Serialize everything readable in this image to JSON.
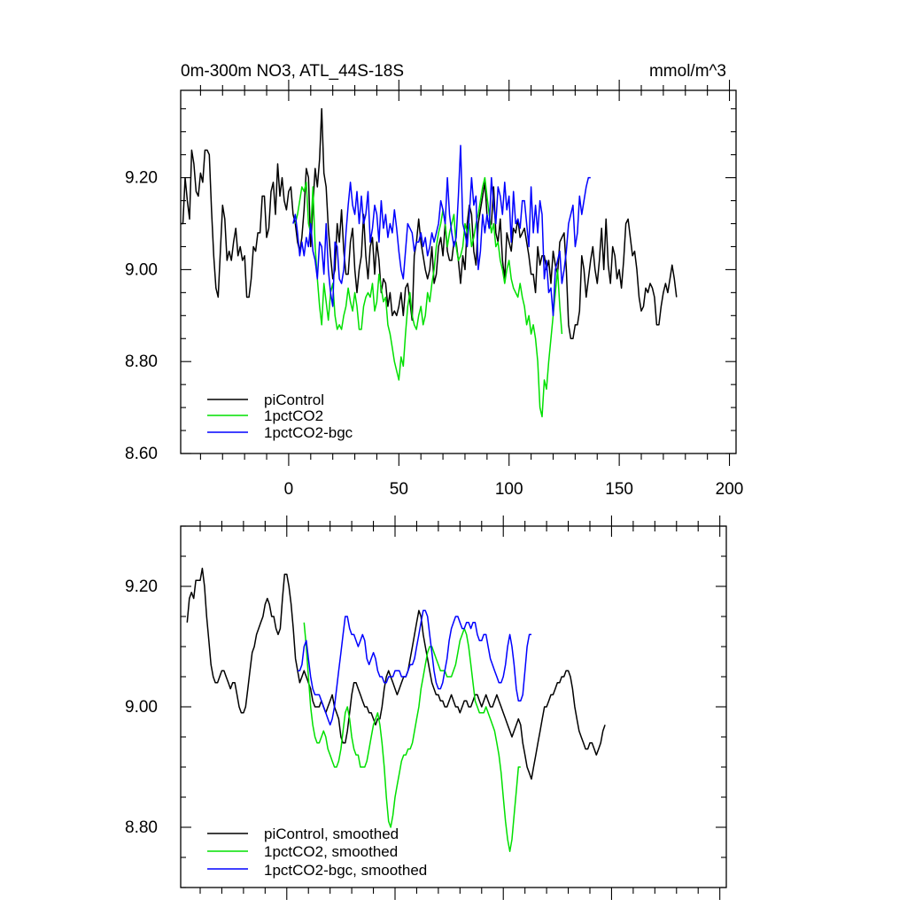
{
  "panels": [
    {
      "title_left": "0m-300m NO3, ATL_44S-18S",
      "title_right": "mmol/m^3",
      "legend": [
        {
          "label": "piControl",
          "color": "#000000"
        },
        {
          "label": "1pctCO2",
          "color": "#00e000"
        },
        {
          "label": "1pctCO2-bgc",
          "color": "#0000ff"
        }
      ]
    },
    {
      "legend": [
        {
          "label": "piControl, smoothed",
          "color": "#000000"
        },
        {
          "label": "1pctCO2, smoothed",
          "color": "#00e000"
        },
        {
          "label": "1pctCO2-bgc, smoothed",
          "color": "#0000ff"
        }
      ]
    }
  ],
  "chart_data": [
    {
      "type": "line",
      "title": "0m-300m NO3, ATL_44S-18S",
      "units": "mmol/m^3",
      "xlim": [
        -49,
        203
      ],
      "ylim": [
        8.6,
        9.39
      ],
      "x_ticks": [
        "0",
        "50",
        "100",
        "150",
        "200"
      ],
      "y_ticks": [
        "8.60",
        "8.80",
        "9.00",
        "9.20"
      ],
      "series": [
        {
          "name": "piControl",
          "color": "#000000",
          "x_start": -49,
          "x_step": 1,
          "values": [
            9.1,
            9.1,
            9.2,
            9.15,
            9.11,
            9.26,
            9.23,
            9.17,
            9.16,
            9.21,
            9.19,
            9.26,
            9.26,
            9.25,
            9.13,
            9.03,
            8.96,
            8.94,
            9.04,
            9.14,
            9.11,
            9.02,
            9.04,
            9.02,
            9.06,
            9.09,
            9.03,
            9.05,
            9.02,
            9.03,
            8.94,
            8.94,
            8.98,
            9.05,
            9.04,
            9.08,
            9.08,
            9.16,
            9.16,
            9.07,
            9.09,
            9.17,
            9.19,
            9.12,
            9.23,
            9.16,
            9.2,
            9.15,
            9.13,
            9.17,
            9.18,
            9.12,
            9.1,
            9.06,
            9.04,
            9.07,
            9.13,
            9.22,
            9.2,
            9.05,
            9.14,
            9.22,
            9.18,
            9.24,
            9.35,
            9.21,
            9.18,
            9.09,
            9.03,
            8.98,
            9.0,
            9.1,
            9.06,
            9.13,
            9.04,
            8.99,
            8.99,
            9.06,
            9.09,
            9.0,
            8.95,
            9.0,
            9.03,
            9.12,
            9.03,
            8.98,
            9.05,
            9.07,
            8.99,
            9.06,
            9.02,
            8.95,
            8.98,
            8.97,
            8.92,
            8.95,
            8.9,
            8.91,
            8.9,
            8.92,
            8.95,
            8.9,
            8.96,
            8.97,
            8.93,
            8.89,
            9.03,
            9.06,
            9.11,
            9.06,
            9.03,
            9.0,
            8.98,
            9.0,
            9.05,
            8.97,
            8.99,
            9.05,
            9.07,
            9.03,
            9.1,
            9.04,
            9.02,
            9.02,
            9.06,
            9.06,
            9.02,
            8.97,
            9.03,
            9.0,
            9.1,
            9.14,
            9.12,
            9.04,
            9.01,
            9.1,
            9.13,
            9.16,
            9.19,
            9.12,
            9.09,
            9.1,
            9.18,
            9.08,
            9.06,
            9.11,
            9.02,
            8.98,
            9.08,
            9.06,
            9.04,
            9.09,
            9.08,
            9.11,
            9.07,
            9.08,
            9.09,
            9.06,
            9.03,
            8.99,
            8.99,
            8.95,
            9.05,
            9.01,
            9.03,
            9.03,
            9.0,
            9.02,
            8.97,
            9.04,
            9.01,
            8.99,
            9.06,
            9.07,
            9.08,
            9.0,
            8.88,
            8.85,
            8.85,
            8.88,
            8.88,
            8.91,
            9.03,
            9.0,
            8.94,
            8.98,
            9.02,
            9.05,
            9.0,
            8.97,
            9.02,
            9.09,
            9.0,
            9.11,
            9.01,
            8.97,
            9.05,
            9.03,
            8.98,
            9.0,
            8.96,
            9.02,
            9.1,
            9.11,
            9.07,
            9.03,
            9.04,
            9.0,
            8.94,
            8.91,
            8.92,
            8.96,
            8.95,
            8.97,
            8.96,
            8.94,
            8.88,
            8.88,
            8.92,
            8.95,
            8.97,
            8.95,
            8.98,
            9.01,
            8.98,
            8.94
          ]
        },
        {
          "name": "1pctCO2",
          "color": "#00e000",
          "x_start": 3,
          "x_step": 1,
          "values": [
            9.1,
            9.12,
            9.15,
            9.18,
            9.17,
            9.19,
            9.1,
            9.08,
            9.18,
            9.05,
            8.98,
            8.92,
            8.88,
            8.97,
            8.93,
            8.89,
            8.95,
            8.97,
            8.9,
            8.87,
            8.88,
            8.87,
            8.9,
            8.92,
            8.96,
            8.93,
            8.91,
            8.95,
            8.92,
            8.87,
            8.87,
            8.92,
            8.94,
            8.95,
            8.94,
            8.97,
            8.91,
            8.93,
            8.99,
            8.96,
            8.93,
            8.94,
            8.88,
            8.86,
            8.83,
            8.8,
            8.78,
            8.76,
            8.81,
            8.79,
            8.86,
            8.92,
            8.95,
            8.9,
            8.88,
            8.87,
            8.9,
            8.92,
            8.88,
            8.9,
            8.95,
            8.93,
            8.97,
            9.0,
            9.05,
            9.08,
            9.1,
            9.13,
            9.1,
            9.05,
            9.08,
            9.1,
            9.12,
            9.05,
            9.02,
            9.03,
            9.05,
            9.1,
            9.08,
            9.1,
            9.05,
            9.07,
            9.1,
            9.12,
            9.15,
            9.18,
            9.2,
            9.16,
            9.12,
            9.08,
            9.1,
            9.05,
            9.06,
            9.02,
            9.0,
            8.97,
            9.0,
            9.02,
            8.98,
            8.96,
            8.95,
            8.94,
            8.97,
            8.94,
            8.92,
            8.88,
            8.9,
            8.86,
            8.88,
            8.85,
            8.8,
            8.7,
            8.68,
            8.76,
            8.74,
            8.8,
            8.85,
            8.9,
            8.95,
            9.0,
            8.92,
            8.86
          ]
        },
        {
          "name": "1pctCO2-bgc",
          "color": "#0000ff",
          "x_start": 2,
          "x_step": 1,
          "values": [
            9.1,
            9.12,
            9.08,
            9.03,
            9.06,
            9.03,
            9.07,
            9.05,
            9.1,
            9.04,
            9.02,
            8.98,
            9.06,
            9.05,
            8.99,
            9.1,
            9.0,
            8.95,
            8.92,
            9.06,
            9.05,
            8.98,
            8.97,
            9.0,
            9.08,
            9.14,
            9.19,
            9.14,
            9.12,
            9.17,
            9.1,
            9.16,
            9.1,
            9.12,
            9.17,
            9.06,
            9.09,
            9.14,
            9.12,
            9.06,
            9.15,
            9.09,
            9.12,
            9.07,
            9.1,
            9.08,
            9.13,
            9.09,
            9.04,
            9.0,
            8.98,
            9.04,
            9.1,
            9.09,
            9.08,
            9.04,
            9.06,
            9.06,
            9.08,
            9.05,
            9.07,
            9.03,
            9.05,
            9.08,
            9.06,
            9.08,
            9.1,
            9.15,
            9.13,
            9.1,
            9.2,
            9.12,
            9.08,
            9.05,
            9.07,
            9.16,
            9.27,
            9.1,
            9.08,
            9.05,
            9.12,
            9.2,
            9.14,
            9.16,
            9.0,
            9.04,
            9.12,
            9.08,
            9.12,
            9.09,
            9.2,
            9.14,
            9.1,
            9.18,
            9.16,
            9.12,
            9.19,
            9.13,
            9.16,
            9.06,
            9.17,
            9.1,
            9.11,
            9.09,
            9.15,
            9.15,
            9.1,
            9.05,
            9.18,
            9.08,
            9.14,
            9.08,
            9.15,
            9.12,
            8.98,
            9.02,
            8.95,
            8.96,
            8.9,
            9.0,
            9.02,
            9.04,
            8.97,
            9.0,
            9.04,
            9.1,
            9.12,
            9.14,
            9.05,
            9.08,
            9.16,
            9.12,
            9.15,
            9.18,
            9.2,
            9.2
          ]
        }
      ]
    },
    {
      "type": "line",
      "title": "",
      "xlim": [
        -49,
        203
      ],
      "ylim": [
        8.7,
        9.3
      ],
      "x_ticks": [],
      "y_ticks": [
        "8.80",
        "9.00",
        "9.20"
      ],
      "series": [
        {
          "name": "piControl, smoothed",
          "color": "#000000",
          "x_start": -46,
          "x_step": 1,
          "values": [
            9.14,
            9.18,
            9.19,
            9.18,
            9.21,
            9.21,
            9.21,
            9.23,
            9.2,
            9.15,
            9.11,
            9.07,
            9.05,
            9.04,
            9.04,
            9.05,
            9.06,
            9.06,
            9.05,
            9.04,
            9.03,
            9.04,
            9.04,
            9.02,
            9.0,
            8.99,
            8.99,
            9.0,
            9.03,
            9.06,
            9.09,
            9.1,
            9.12,
            9.13,
            9.14,
            9.15,
            9.17,
            9.18,
            9.17,
            9.15,
            9.15,
            9.13,
            9.12,
            9.13,
            9.18,
            9.22,
            9.22,
            9.2,
            9.17,
            9.13,
            9.08,
            9.06,
            9.04,
            9.05,
            9.06,
            9.05,
            9.04,
            9.03,
            9.01,
            9.0,
            9.0,
            9.0,
            9.01,
            9.0,
            8.99,
            9.0,
            9.01,
            9.02,
            9.0,
            8.99,
            8.98,
            8.95,
            8.94,
            8.94,
            8.96,
            8.99,
            9.02,
            9.04,
            9.04,
            9.03,
            9.02,
            9.01,
            9.0,
            9.0,
            8.99,
            8.99,
            8.98,
            8.97,
            8.98,
            8.98,
            9.0,
            9.03,
            9.05,
            9.06,
            9.05,
            9.04,
            9.03,
            9.02,
            9.03,
            9.04,
            9.05,
            9.05,
            9.06,
            9.08,
            9.1,
            9.12,
            9.14,
            9.16,
            9.15,
            9.12,
            9.1,
            9.08,
            9.06,
            9.04,
            9.03,
            9.02,
            9.02,
            9.01,
            9.01,
            9.0,
            9.0,
            9.01,
            9.02,
            9.01,
            9.0,
            9.0,
            8.99,
            9.0,
            9.01,
            9.01,
            9.0,
            9.0,
            9.01,
            9.02,
            9.02,
            9.01,
            9.0,
            9.01,
            9.02,
            9.01,
            9.0,
            9.0,
            9.01,
            9.02,
            9.01,
            9.0,
            8.99,
            8.98,
            8.97,
            8.96,
            8.95,
            8.96,
            8.97,
            8.98,
            8.97,
            8.94,
            8.92,
            8.9,
            8.89,
            8.88,
            8.9,
            8.92,
            8.94,
            8.96,
            8.98,
            9.0,
            9.0,
            9.01,
            9.02,
            9.02,
            9.03,
            9.04,
            9.04,
            9.05,
            9.05,
            9.06,
            9.06,
            9.05,
            9.03,
            9.0,
            8.98,
            8.96,
            8.95,
            8.94,
            8.93,
            8.93,
            8.94,
            8.94,
            8.93,
            8.92,
            8.93,
            8.94,
            8.96,
            8.97
          ]
        },
        {
          "name": "1pctCO2, smoothed",
          "color": "#00e000",
          "x_start": 8,
          "x_step": 1,
          "values": [
            9.14,
            9.1,
            9.05,
            9.0,
            8.97,
            8.95,
            8.94,
            8.94,
            8.95,
            8.96,
            8.95,
            8.93,
            8.92,
            8.91,
            8.9,
            8.9,
            8.91,
            8.93,
            8.96,
            8.99,
            9.0,
            8.98,
            8.95,
            8.93,
            8.92,
            8.92,
            8.9,
            8.9,
            8.9,
            8.91,
            8.93,
            8.95,
            8.97,
            8.98,
            8.99,
            8.97,
            8.94,
            8.9,
            8.85,
            8.81,
            8.8,
            8.82,
            8.85,
            8.87,
            8.89,
            8.91,
            8.92,
            8.92,
            8.93,
            8.93,
            8.94,
            8.96,
            8.98,
            9.0,
            9.03,
            9.05,
            9.07,
            9.09,
            9.1,
            9.1,
            9.09,
            9.08,
            9.07,
            9.06,
            9.06,
            9.06,
            9.05,
            9.05,
            9.05,
            9.06,
            9.07,
            9.09,
            9.11,
            9.12,
            9.13,
            9.12,
            9.1,
            9.07,
            9.04,
            9.01,
            9.0,
            8.99,
            8.99,
            8.99,
            9.0,
            8.99,
            8.98,
            8.97,
            8.96,
            8.94,
            8.92,
            8.89,
            8.85,
            8.81,
            8.78,
            8.76,
            8.78,
            8.82,
            8.86,
            8.9,
            8.9
          ]
        },
        {
          "name": "1pctCO2-bgc, smoothed",
          "color": "#0000ff",
          "x_start": 5,
          "x_step": 1,
          "values": [
            9.06,
            9.06,
            9.07,
            9.1,
            9.11,
            9.08,
            9.05,
            9.03,
            9.02,
            9.02,
            9.02,
            9.01,
            9.0,
            8.99,
            8.98,
            8.97,
            8.98,
            9.0,
            9.03,
            9.06,
            9.09,
            9.12,
            9.15,
            9.15,
            9.13,
            9.12,
            9.12,
            9.11,
            9.1,
            9.11,
            9.12,
            9.11,
            9.08,
            9.07,
            9.08,
            9.09,
            9.08,
            9.06,
            9.05,
            9.05,
            9.04,
            9.04,
            9.05,
            9.05,
            9.05,
            9.06,
            9.06,
            9.06,
            9.05,
            9.05,
            9.05,
            9.06,
            9.07,
            9.07,
            9.08,
            9.1,
            9.12,
            9.14,
            9.16,
            9.16,
            9.15,
            9.12,
            9.09,
            9.06,
            9.04,
            9.03,
            9.03,
            9.04,
            9.06,
            9.08,
            9.11,
            9.13,
            9.14,
            9.15,
            9.15,
            9.14,
            9.13,
            9.13,
            9.14,
            9.14,
            9.13,
            9.14,
            9.14,
            9.12,
            9.11,
            9.11,
            9.12,
            9.12,
            9.1,
            9.08,
            9.07,
            9.06,
            9.05,
            9.04,
            9.04,
            9.05,
            9.07,
            9.1,
            9.12,
            9.1,
            9.07,
            9.03,
            9.01,
            9.01,
            9.02,
            9.06,
            9.1,
            9.12,
            9.12
          ]
        }
      ]
    }
  ]
}
